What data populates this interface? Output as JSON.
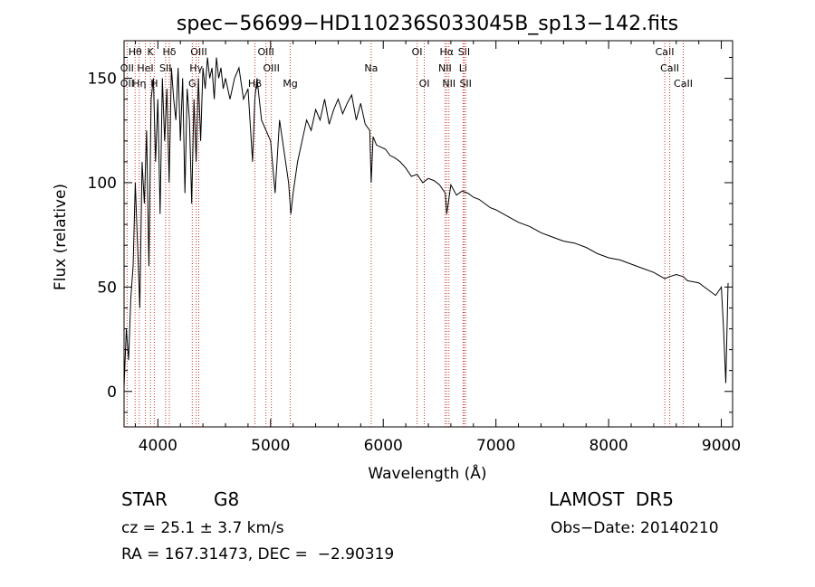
{
  "chart_data": {
    "type": "line",
    "title": "spec−56699−HD110236S033045B_sp13−142.fits",
    "xlabel": "Wavelength (Å)",
    "ylabel": "Flux (relative)",
    "xlim": [
      3700,
      9100
    ],
    "ylim": [
      -17,
      168
    ],
    "xticks": [
      4000,
      5000,
      6000,
      7000,
      8000,
      9000
    ],
    "yticks": [
      0,
      50,
      100,
      150
    ],
    "series": [
      {
        "color": "#000000",
        "x": [
          3700,
          3720,
          3740,
          3760,
          3780,
          3800,
          3820,
          3840,
          3860,
          3880,
          3900,
          3920,
          3940,
          3960,
          3980,
          4000,
          4020,
          4040,
          4060,
          4080,
          4100,
          4120,
          4140,
          4160,
          4180,
          4200,
          4220,
          4240,
          4260,
          4280,
          4300,
          4320,
          4340,
          4360,
          4380,
          4400,
          4420,
          4440,
          4460,
          4480,
          4500,
          4520,
          4540,
          4560,
          4580,
          4600,
          4640,
          4680,
          4720,
          4760,
          4800,
          4840,
          4860,
          4880,
          4920,
          4960,
          5000,
          5040,
          5080,
          5120,
          5160,
          5180,
          5200,
          5240,
          5280,
          5320,
          5360,
          5400,
          5440,
          5480,
          5520,
          5560,
          5600,
          5640,
          5680,
          5720,
          5760,
          5800,
          5840,
          5880,
          5893,
          5910,
          5940,
          5980,
          6020,
          6060,
          6100,
          6150,
          6200,
          6250,
          6300,
          6350,
          6400,
          6450,
          6500,
          6550,
          6563,
          6600,
          6650,
          6700,
          6750,
          6800,
          6850,
          6900,
          6950,
          7000,
          7100,
          7200,
          7300,
          7400,
          7500,
          7600,
          7700,
          7800,
          7900,
          8000,
          8100,
          8200,
          8300,
          8400,
          8498,
          8542,
          8600,
          8662,
          8700,
          8800,
          8850,
          8900,
          8950,
          9000,
          9020,
          9040,
          9060
        ],
        "y": [
          2,
          30,
          15,
          45,
          60,
          100,
          70,
          40,
          110,
          90,
          125,
          60,
          140,
          150,
          110,
          140,
          85,
          150,
          120,
          145,
          100,
          155,
          140,
          130,
          155,
          120,
          150,
          95,
          145,
          130,
          90,
          140,
          110,
          150,
          120,
          155,
          145,
          160,
          150,
          155,
          140,
          160,
          150,
          155,
          145,
          150,
          140,
          150,
          155,
          140,
          145,
          110,
          140,
          150,
          130,
          125,
          120,
          95,
          130,
          115,
          100,
          85,
          95,
          110,
          120,
          130,
          125,
          135,
          130,
          140,
          128,
          135,
          140,
          133,
          138,
          142,
          130,
          138,
          128,
          125,
          100,
          122,
          118,
          117,
          116,
          113,
          112,
          110,
          107,
          103,
          104,
          100,
          102,
          101,
          99,
          95,
          85,
          99,
          94,
          96,
          95,
          93,
          92,
          90,
          88,
          87,
          84,
          81,
          79,
          76,
          74,
          72,
          71,
          69,
          66,
          64,
          63,
          61,
          59,
          57,
          54,
          55,
          56,
          55,
          53,
          52,
          50,
          48,
          46,
          50,
          30,
          4,
          52
        ]
      }
    ],
    "line_markers": [
      {
        "label": "Hθ",
        "x": 3798,
        "row": 1
      },
      {
        "label": "K",
        "x": 3934,
        "row": 1
      },
      {
        "label": "Hδ",
        "x": 4102,
        "row": 1
      },
      {
        "label": "OIII",
        "x": 4363,
        "row": 1
      },
      {
        "label": "OIII",
        "x": 4959,
        "row": 1
      },
      {
        "label": "OI",
        "x": 6300,
        "row": 1
      },
      {
        "label": "Hα",
        "x": 6563,
        "row": 1
      },
      {
        "label": "SII",
        "x": 6717,
        "row": 1
      },
      {
        "label": "CaII",
        "x": 8498,
        "row": 1
      },
      {
        "label": "OII",
        "x": 3727,
        "row": 2
      },
      {
        "label": "HeI",
        "x": 3889,
        "row": 2
      },
      {
        "label": "SII",
        "x": 4068,
        "row": 2
      },
      {
        "label": "Hγ",
        "x": 4340,
        "row": 2
      },
      {
        "label": "OIII",
        "x": 5007,
        "row": 2
      },
      {
        "label": "Na",
        "x": 5893,
        "row": 2
      },
      {
        "label": "NII",
        "x": 6548,
        "row": 2
      },
      {
        "label": "Li",
        "x": 6708,
        "row": 2
      },
      {
        "label": "CaII",
        "x": 8542,
        "row": 2
      },
      {
        "label": "OII",
        "x": 3727,
        "row": 3
      },
      {
        "label": "Hη",
        "x": 3835,
        "row": 3
      },
      {
        "label": "H",
        "x": 3968,
        "row": 3
      },
      {
        "label": "G",
        "x": 4305,
        "row": 3
      },
      {
        "label": "Hβ",
        "x": 4861,
        "row": 3
      },
      {
        "label": "Mg",
        "x": 5175,
        "row": 3
      },
      {
        "label": "OI",
        "x": 6364,
        "row": 3
      },
      {
        "label": "NII",
        "x": 6583,
        "row": 3
      },
      {
        "label": "SII",
        "x": 6731,
        "row": 3
      },
      {
        "label": "CaII",
        "x": 8662,
        "row": 3
      }
    ]
  },
  "info": {
    "object_class": "STAR",
    "subclass": "G8",
    "survey": "LAMOST  DR5",
    "redshift": "cz = 25.1 ± 3.7 km/s",
    "obs_date": "Obs−Date: 20140210",
    "coords": "RA = 167.31473, DEC =  −2.90319"
  }
}
